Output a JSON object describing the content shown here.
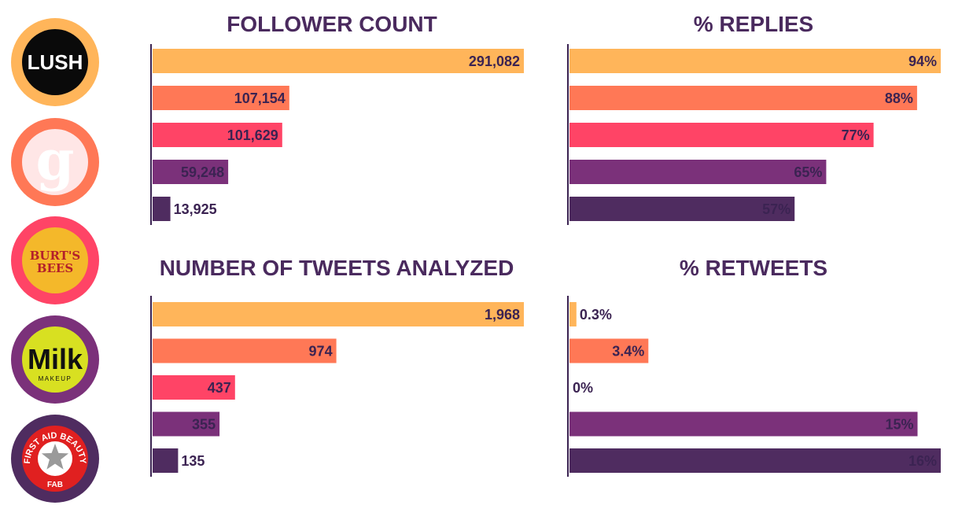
{
  "palette": [
    "#ffb55a",
    "#ff7856",
    "#ff4466",
    "#7b317a",
    "#4f2c60"
  ],
  "brands": [
    {
      "name": "LUSH",
      "ring": "#ffb55a",
      "inner": "#0a0a0a",
      "text": "#ffffff"
    },
    {
      "name": "Glossier",
      "glyph": "g",
      "ring": "#ff7856",
      "inner": "#ffe6e6",
      "text": "#ffffff"
    },
    {
      "name": "BURT'S BEES",
      "line1": "BURT'S",
      "line2": "BEES",
      "ring": "#ff4466",
      "inner": "#f4b82a",
      "text": "#b3202a"
    },
    {
      "name": "Milk MAKEUP",
      "line1": "Milk",
      "line2": "MAKEUP",
      "ring": "#7b317a",
      "inner": "#d8e021",
      "text": "#111111"
    },
    {
      "name": "FIRST AID BEAUTY FAB",
      "line1": "FIRST AID BEAUTY",
      "line2": "FAB",
      "ring": "#4f2c60",
      "inner": "#e02020",
      "text": "#ffffff"
    }
  ],
  "chart_data": [
    {
      "type": "bar",
      "orientation": "horizontal",
      "title": "FOLLOWER COUNT",
      "categories": [
        "LUSH",
        "Glossier",
        "BURT'S BEES",
        "Milk MAKEUP",
        "FIRST AID BEAUTY"
      ],
      "values": [
        291082,
        107154,
        101629,
        59248,
        13925
      ],
      "labels": [
        "291,082",
        "107,154",
        "101,629",
        "59,248",
        "13,925"
      ],
      "xlim": [
        0,
        291082
      ],
      "grid": false
    },
    {
      "type": "bar",
      "orientation": "horizontal",
      "title": "% REPLIES",
      "categories": [
        "LUSH",
        "Glossier",
        "BURT'S BEES",
        "Milk MAKEUP",
        "FIRST AID BEAUTY"
      ],
      "values": [
        94,
        88,
        77,
        65,
        57
      ],
      "labels": [
        "94%",
        "88%",
        "77%",
        "65%",
        "57%"
      ],
      "xlim": [
        0,
        94
      ],
      "grid": false
    },
    {
      "type": "bar",
      "orientation": "horizontal",
      "title": "NUMBER OF TWEETS ANALYZED",
      "categories": [
        "LUSH",
        "Glossier",
        "BURT'S BEES",
        "Milk MAKEUP",
        "FIRST AID BEAUTY"
      ],
      "values": [
        1968,
        974,
        437,
        355,
        135
      ],
      "labels": [
        "1,968",
        "974",
        "437",
        "355",
        "135"
      ],
      "xlim": [
        0,
        1968
      ],
      "grid": false
    },
    {
      "type": "bar",
      "orientation": "horizontal",
      "title": "% RETWEETS",
      "categories": [
        "LUSH",
        "Glossier",
        "BURT'S BEES",
        "Milk MAKEUP",
        "FIRST AID BEAUTY"
      ],
      "values": [
        0.3,
        3.4,
        0,
        15,
        16
      ],
      "labels": [
        "0.3%",
        "3.4%",
        "0%",
        "15%",
        "16%"
      ],
      "xlim": [
        0,
        16
      ],
      "grid": false
    }
  ]
}
